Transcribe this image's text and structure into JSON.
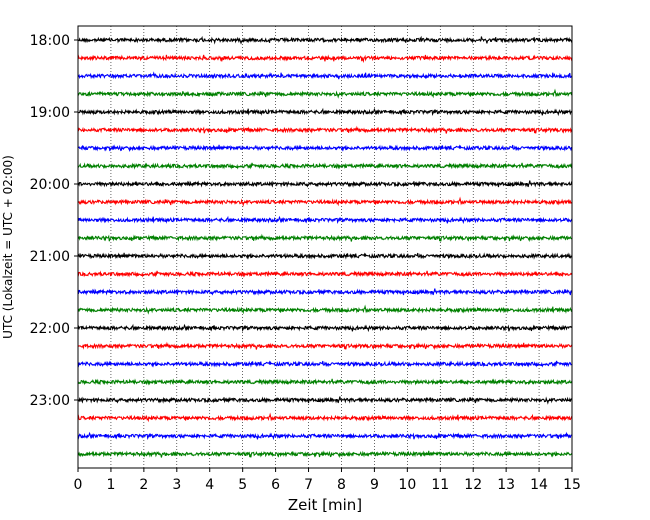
{
  "chart_data": {
    "type": "line",
    "title": "",
    "xlabel": "Zeit  [min]",
    "ylabel": "UTC (Lokalzeit = UTC + 02:00)",
    "xlim": [
      0,
      15
    ],
    "x_ticks": [
      "0",
      "1",
      "2",
      "3",
      "4",
      "5",
      "6",
      "7",
      "8",
      "9",
      "10",
      "11",
      "12",
      "13",
      "14",
      "15"
    ],
    "y_tick_labels": [
      "18:00",
      "19:00",
      "20:00",
      "21:00",
      "22:00",
      "23:00"
    ],
    "vertical_grid": "dotted",
    "trace_interval_minutes": 15,
    "trace_start": "18:00",
    "trace_count": 24,
    "trace_colors": [
      "#000000",
      "#ff0000",
      "#0000ff",
      "#008000"
    ],
    "description": "Seismogram helicorder: each row is a 15-minute trace of small noise around zero"
  }
}
